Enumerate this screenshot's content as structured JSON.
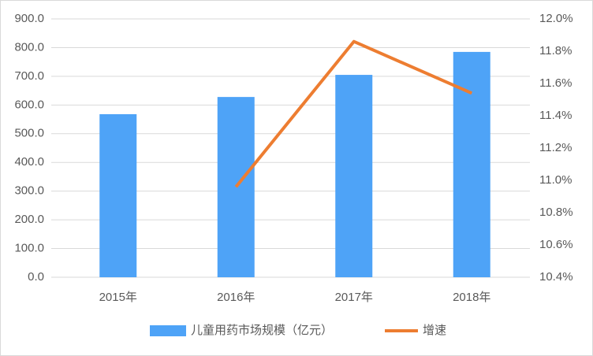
{
  "chart_data": {
    "type": "bar-line",
    "categories": [
      "2015年",
      "2016年",
      "2017年",
      "2018年"
    ],
    "series": [
      {
        "name": "儿童用药市场规模（亿元）",
        "type": "bar",
        "color": "#4ea3f7",
        "values": [
          568,
          628,
          705,
          785
        ]
      },
      {
        "name": "增速",
        "type": "line",
        "axis": "y2",
        "color": "#ed7d31",
        "values": [
          null,
          10.96,
          11.86,
          11.54
        ]
      }
    ],
    "ylim": [
      0,
      900
    ],
    "yticks": [
      {
        "value": 0,
        "label": "0.0"
      },
      {
        "value": 100,
        "label": "100.0"
      },
      {
        "value": 200,
        "label": "200.0"
      },
      {
        "value": 300,
        "label": "300.0"
      },
      {
        "value": 400,
        "label": "400.0"
      },
      {
        "value": 500,
        "label": "500.0"
      },
      {
        "value": 600,
        "label": "600.0"
      },
      {
        "value": 700,
        "label": "700.0"
      },
      {
        "value": 800,
        "label": "800.0"
      },
      {
        "value": 900,
        "label": "900.0"
      }
    ],
    "y2lim": [
      10.4,
      12.0
    ],
    "y2ticks": [
      {
        "value": 10.4,
        "label": "10.4%"
      },
      {
        "value": 10.6,
        "label": "10.6%"
      },
      {
        "value": 10.8,
        "label": "10.8%"
      },
      {
        "value": 11.0,
        "label": "11.0%"
      },
      {
        "value": 11.2,
        "label": "11.2%"
      },
      {
        "value": 11.4,
        "label": "11.4%"
      },
      {
        "value": 11.6,
        "label": "11.6%"
      },
      {
        "value": 11.8,
        "label": "11.8%"
      },
      {
        "value": 12.0,
        "label": "12.0%"
      }
    ],
    "grid": true,
    "legend": "bottom"
  }
}
